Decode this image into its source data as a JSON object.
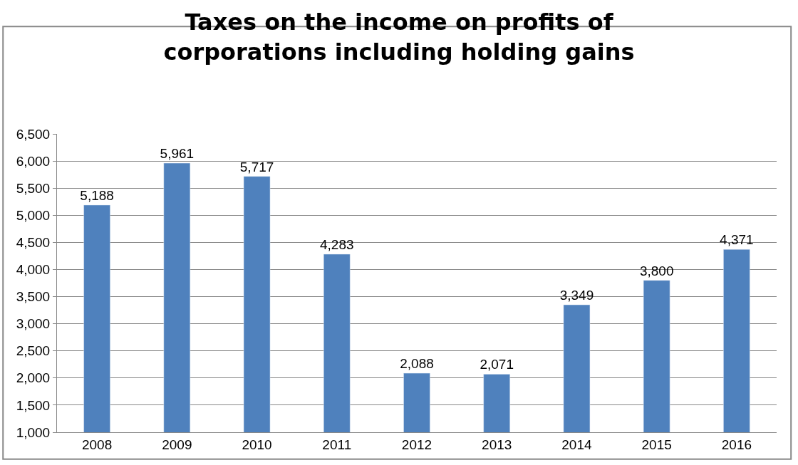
{
  "chart_data": {
    "type": "bar",
    "title": "Taxes on the income on profits of corporations including holding gains",
    "categories": [
      "2008",
      "2009",
      "2010",
      "2011",
      "2012",
      "2013",
      "2014",
      "2015",
      "2016"
    ],
    "values": [
      5188,
      5961,
      5717,
      4283,
      2088,
      2071,
      3349,
      3800,
      4371
    ],
    "color": "#4f81bd",
    "ylim": [
      1000,
      6500
    ],
    "yticks": [
      {
        "value": 1000,
        "label": "1,000"
      },
      {
        "value": 1500,
        "label": "1,500"
      },
      {
        "value": 2000,
        "label": "2,000"
      },
      {
        "value": 2500,
        "label": "2,500"
      },
      {
        "value": 3000,
        "label": "3,000"
      },
      {
        "value": 3500,
        "label": "3,500"
      },
      {
        "value": 4000,
        "label": "4,000"
      },
      {
        "value": 4500,
        "label": "4,500"
      },
      {
        "value": 5000,
        "label": "5,000"
      },
      {
        "value": 5500,
        "label": "5,500"
      },
      {
        "value": 6000,
        "label": "6,000"
      },
      {
        "value": 6500,
        "label": "6,500"
      }
    ],
    "value_labels": [
      "5,188",
      "5,961",
      "5,717",
      "4,283",
      "2,088",
      "2,071",
      "3,349",
      "3,800",
      "4,371"
    ],
    "grid": "y"
  }
}
